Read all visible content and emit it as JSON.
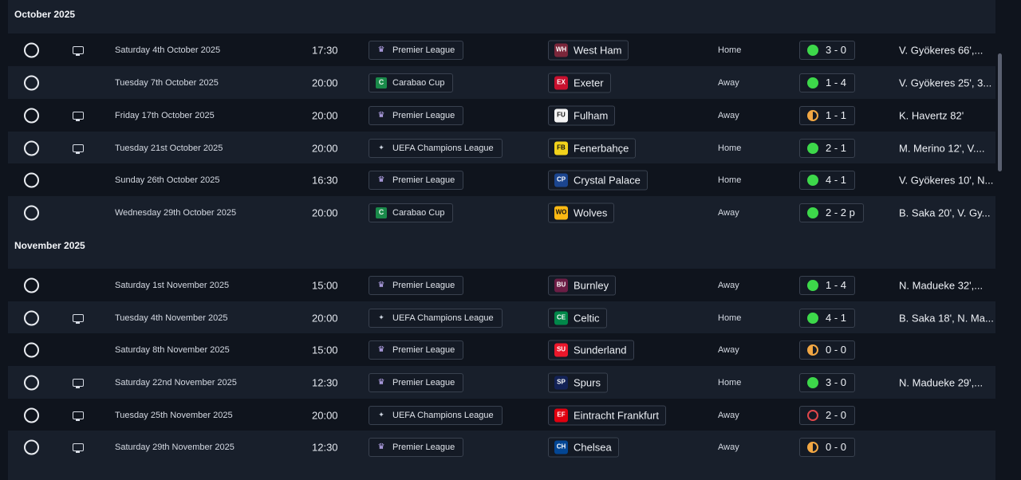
{
  "months": [
    {
      "label": "October 2025",
      "fixtures": [
        {
          "tv": true,
          "date": "Saturday 4th October 2025",
          "time": "17:30",
          "competition": "Premier League",
          "comp_icon": "premier-league-icon",
          "opponent": "West Ham",
          "crest_color": "#7a263a",
          "crest_text": "WH",
          "venue": "Home",
          "outcome": "win",
          "score": "3 - 0",
          "scorers": "V. Gyökeres 66',..."
        },
        {
          "tv": false,
          "date": "Tuesday 7th October 2025",
          "time": "20:00",
          "competition": "Carabao Cup",
          "comp_icon": "carabao-cup-icon",
          "opponent": "Exeter",
          "crest_color": "#c8102e",
          "crest_text": "EX",
          "venue": "Away",
          "outcome": "win",
          "score": "1 - 4",
          "scorers": "V. Gyökeres 25', 3..."
        },
        {
          "tv": true,
          "date": "Friday 17th October 2025",
          "time": "20:00",
          "competition": "Premier League",
          "comp_icon": "premier-league-icon",
          "opponent": "Fulham",
          "crest_color": "#f4f4f4",
          "crest_text": "FU",
          "venue": "Away",
          "outcome": "draw",
          "score": "1 - 1",
          "scorers": "K. Havertz 82'"
        },
        {
          "tv": true,
          "date": "Tuesday 21st October 2025",
          "time": "20:00",
          "competition": "UEFA Champions League",
          "comp_icon": "champions-league-icon",
          "opponent": "Fenerbahçe",
          "crest_color": "#f2d21b",
          "crest_text": "FB",
          "venue": "Home",
          "outcome": "win",
          "score": "2 - 1",
          "scorers": "M. Merino 12', V...."
        },
        {
          "tv": false,
          "date": "Sunday 26th October 2025",
          "time": "16:30",
          "competition": "Premier League",
          "comp_icon": "premier-league-icon",
          "opponent": "Crystal Palace",
          "crest_color": "#1b458f",
          "crest_text": "CP",
          "venue": "Home",
          "outcome": "win",
          "score": "4 - 1",
          "scorers": "V. Gyökeres 10', N..."
        },
        {
          "tv": false,
          "date": "Wednesday 29th October 2025",
          "time": "20:00",
          "competition": "Carabao Cup",
          "comp_icon": "carabao-cup-icon",
          "opponent": "Wolves",
          "crest_color": "#fdb913",
          "crest_text": "WO",
          "venue": "Away",
          "outcome": "win",
          "score": "2 - 2 p",
          "scorers": "B. Saka 20', V. Gy..."
        }
      ]
    },
    {
      "label": "November 2025",
      "fixtures": [
        {
          "tv": false,
          "date": "Saturday 1st November 2025",
          "time": "15:00",
          "competition": "Premier League",
          "comp_icon": "premier-league-icon",
          "opponent": "Burnley",
          "crest_color": "#6c1d45",
          "crest_text": "BU",
          "venue": "Away",
          "outcome": "win",
          "score": "1 - 4",
          "scorers": "N. Madueke 32',..."
        },
        {
          "tv": true,
          "date": "Tuesday 4th November 2025",
          "time": "20:00",
          "competition": "UEFA Champions League",
          "comp_icon": "champions-league-icon",
          "opponent": "Celtic",
          "crest_color": "#018749",
          "crest_text": "CE",
          "venue": "Home",
          "outcome": "win",
          "score": "4 - 1",
          "scorers": "B. Saka 18', N. Ma..."
        },
        {
          "tv": false,
          "date": "Saturday 8th November 2025",
          "time": "15:00",
          "competition": "Premier League",
          "comp_icon": "premier-league-icon",
          "opponent": "Sunderland",
          "crest_color": "#eb172b",
          "crest_text": "SU",
          "venue": "Away",
          "outcome": "draw",
          "score": "0 - 0",
          "scorers": ""
        },
        {
          "tv": true,
          "date": "Saturday 22nd November 2025",
          "time": "12:30",
          "competition": "Premier League",
          "comp_icon": "premier-league-icon",
          "opponent": "Spurs",
          "crest_color": "#132257",
          "crest_text": "SP",
          "venue": "Home",
          "outcome": "win",
          "score": "3 - 0",
          "scorers": "N. Madueke 29',..."
        },
        {
          "tv": true,
          "date": "Tuesday 25th November 2025",
          "time": "20:00",
          "competition": "UEFA Champions League",
          "comp_icon": "champions-league-icon",
          "opponent": "Eintracht Frankfurt",
          "crest_color": "#e1000f",
          "crest_text": "EF",
          "venue": "Away",
          "outcome": "loss",
          "score": "2 - 0",
          "scorers": ""
        },
        {
          "tv": true,
          "date": "Saturday 29th November 2025",
          "time": "12:30",
          "competition": "Premier League",
          "comp_icon": "premier-league-icon",
          "opponent": "Chelsea",
          "crest_color": "#034694",
          "crest_text": "CH",
          "venue": "Away",
          "outcome": "draw",
          "score": "0 - 0",
          "scorers": ""
        }
      ]
    }
  ]
}
